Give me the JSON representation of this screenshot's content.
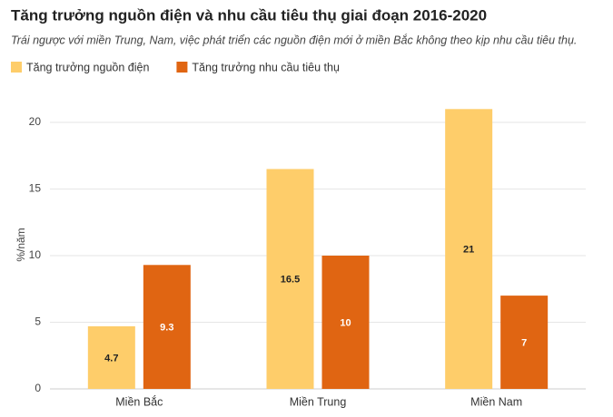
{
  "chart_data": {
    "type": "grouped_bar",
    "title": "Tăng trưởng nguồn điện và nhu cầu tiêu thụ giai đoạn 2016-2020",
    "subtitle": "Trái ngược với miền Trung, Nam, việc phát triển các nguồn điện mới ở miền Bắc không theo kịp nhu cầu tiêu thụ.",
    "y_label": "%/năm",
    "categories": [
      "Miền Bắc",
      "Miền Trung",
      "Miền Nam"
    ],
    "series": [
      {
        "name": "Tăng trưởng nguồn điện",
        "color": "#fecd6a",
        "values": [
          4.7,
          16.5,
          21
        ]
      },
      {
        "name": "Tăng trưởng nhu cầu tiêu thụ",
        "color": "#e06512",
        "values": [
          9.3,
          10,
          7
        ]
      }
    ],
    "ylim": [
      0,
      22
    ],
    "yticks": [
      0,
      5,
      10,
      15,
      20
    ],
    "grid": true,
    "legend": "top-left"
  }
}
